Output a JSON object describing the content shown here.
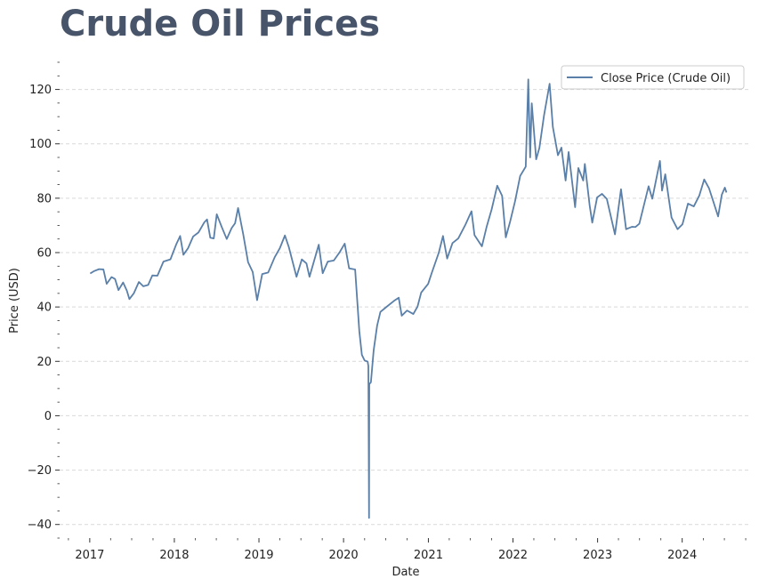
{
  "chart_data": {
    "type": "line",
    "title": "Crude Oil Prices",
    "xlabel": "Date",
    "ylabel": "Price (USD)",
    "xlim": [
      "2016-08-24",
      "2024-10-20"
    ],
    "ylim": [
      -45,
      130
    ],
    "x_ticks": [
      {
        "date": "2017-01-01",
        "label": "2017"
      },
      {
        "date": "2018-01-01",
        "label": "2018"
      },
      {
        "date": "2019-01-01",
        "label": "2019"
      },
      {
        "date": "2020-01-01",
        "label": "2020"
      },
      {
        "date": "2021-01-01",
        "label": "2021"
      },
      {
        "date": "2022-01-01",
        "label": "2022"
      },
      {
        "date": "2023-01-01",
        "label": "2023"
      },
      {
        "date": "2024-01-01",
        "label": "2024"
      }
    ],
    "y_ticks": [
      -40,
      -20,
      0,
      20,
      40,
      60,
      80,
      100,
      120
    ],
    "y_minor_step": 5,
    "grid": {
      "y": true,
      "x": false,
      "style": "dashed"
    },
    "legend": {
      "position": "top-right"
    },
    "color": "#5a7fa8",
    "series": [
      {
        "name": "Close Price (Crude Oil)",
        "points": [
          [
            "2017-01-03",
            52.3
          ],
          [
            "2017-01-20",
            53.2
          ],
          [
            "2017-02-10",
            53.9
          ],
          [
            "2017-03-01",
            53.8
          ],
          [
            "2017-03-15",
            48.5
          ],
          [
            "2017-04-05",
            51.0
          ],
          [
            "2017-04-20",
            50.3
          ],
          [
            "2017-05-05",
            46.2
          ],
          [
            "2017-05-25",
            49.0
          ],
          [
            "2017-06-10",
            46.0
          ],
          [
            "2017-06-21",
            42.9
          ],
          [
            "2017-07-10",
            45.0
          ],
          [
            "2017-08-01",
            49.2
          ],
          [
            "2017-08-20",
            47.6
          ],
          [
            "2017-09-10",
            48.1
          ],
          [
            "2017-09-28",
            51.6
          ],
          [
            "2017-10-20",
            51.5
          ],
          [
            "2017-11-15",
            56.7
          ],
          [
            "2017-12-15",
            57.5
          ],
          [
            "2018-01-10",
            63.2
          ],
          [
            "2018-01-26",
            66.1
          ],
          [
            "2018-02-09",
            59.2
          ],
          [
            "2018-03-01",
            61.6
          ],
          [
            "2018-03-23",
            65.9
          ],
          [
            "2018-04-15",
            67.4
          ],
          [
            "2018-05-10",
            71.1
          ],
          [
            "2018-05-22",
            72.2
          ],
          [
            "2018-06-05",
            65.5
          ],
          [
            "2018-06-20",
            65.2
          ],
          [
            "2018-07-03",
            74.1
          ],
          [
            "2018-07-25",
            69.3
          ],
          [
            "2018-08-15",
            65.0
          ],
          [
            "2018-09-05",
            69.0
          ],
          [
            "2018-09-20",
            70.8
          ],
          [
            "2018-10-03",
            76.4
          ],
          [
            "2018-10-25",
            66.8
          ],
          [
            "2018-11-15",
            56.5
          ],
          [
            "2018-12-05",
            52.9
          ],
          [
            "2018-12-24",
            42.5
          ],
          [
            "2019-01-15",
            52.1
          ],
          [
            "2019-02-10",
            52.7
          ],
          [
            "2019-03-10",
            58.3
          ],
          [
            "2019-04-01",
            61.6
          ],
          [
            "2019-04-23",
            66.3
          ],
          [
            "2019-05-10",
            62.0
          ],
          [
            "2019-06-12",
            51.1
          ],
          [
            "2019-07-05",
            57.5
          ],
          [
            "2019-07-25",
            56.0
          ],
          [
            "2019-08-07",
            51.1
          ],
          [
            "2019-09-16",
            62.9
          ],
          [
            "2019-10-03",
            52.4
          ],
          [
            "2019-10-25",
            56.7
          ],
          [
            "2019-11-20",
            57.1
          ],
          [
            "2019-12-15",
            60.1
          ],
          [
            "2020-01-06",
            63.3
          ],
          [
            "2020-01-25",
            54.2
          ],
          [
            "2020-02-20",
            53.8
          ],
          [
            "2020-03-09",
            31.1
          ],
          [
            "2020-03-20",
            22.4
          ],
          [
            "2020-04-01",
            20.3
          ],
          [
            "2020-04-14",
            19.9
          ],
          [
            "2020-04-17",
            18.3
          ],
          [
            "2020-04-20",
            -37.6
          ],
          [
            "2020-04-21",
            11.6
          ],
          [
            "2020-04-28",
            12.3
          ],
          [
            "2020-05-10",
            24.1
          ],
          [
            "2020-05-25",
            33.2
          ],
          [
            "2020-06-08",
            38.2
          ],
          [
            "2020-07-01",
            39.8
          ],
          [
            "2020-08-05",
            42.2
          ],
          [
            "2020-08-26",
            43.4
          ],
          [
            "2020-09-08",
            36.8
          ],
          [
            "2020-10-01",
            38.7
          ],
          [
            "2020-10-28",
            37.4
          ],
          [
            "2020-11-15",
            40.1
          ],
          [
            "2020-12-01",
            45.3
          ],
          [
            "2020-12-31",
            48.5
          ],
          [
            "2021-01-15",
            52.4
          ],
          [
            "2021-02-15",
            60.0
          ],
          [
            "2021-03-05",
            66.1
          ],
          [
            "2021-03-23",
            57.8
          ],
          [
            "2021-04-15",
            63.5
          ],
          [
            "2021-05-10",
            65.2
          ],
          [
            "2021-06-10",
            70.3
          ],
          [
            "2021-07-06",
            75.2
          ],
          [
            "2021-07-19",
            66.4
          ],
          [
            "2021-08-20",
            62.3
          ],
          [
            "2021-09-10",
            69.7
          ],
          [
            "2021-10-01",
            75.9
          ],
          [
            "2021-10-25",
            84.6
          ],
          [
            "2021-11-15",
            80.9
          ],
          [
            "2021-12-01",
            65.6
          ],
          [
            "2021-12-20",
            71.5
          ],
          [
            "2022-01-10",
            78.9
          ],
          [
            "2022-02-01",
            88.2
          ],
          [
            "2022-02-25",
            91.6
          ],
          [
            "2022-03-08",
            123.7
          ],
          [
            "2022-03-16",
            95.0
          ],
          [
            "2022-03-23",
            114.9
          ],
          [
            "2022-04-11",
            94.3
          ],
          [
            "2022-04-25",
            98.5
          ],
          [
            "2022-05-15",
            110.5
          ],
          [
            "2022-06-08",
            122.1
          ],
          [
            "2022-06-22",
            106.2
          ],
          [
            "2022-07-14",
            95.8
          ],
          [
            "2022-07-29",
            98.6
          ],
          [
            "2022-08-16",
            86.5
          ],
          [
            "2022-08-29",
            97.0
          ],
          [
            "2022-09-26",
            76.7
          ],
          [
            "2022-10-10",
            91.1
          ],
          [
            "2022-10-31",
            86.5
          ],
          [
            "2022-11-07",
            92.6
          ],
          [
            "2022-11-28",
            77.2
          ],
          [
            "2022-12-09",
            71.0
          ],
          [
            "2022-12-30",
            80.3
          ],
          [
            "2023-01-20",
            81.6
          ],
          [
            "2023-02-10",
            79.7
          ],
          [
            "2023-03-17",
            66.7
          ],
          [
            "2023-04-12",
            83.3
          ],
          [
            "2023-05-04",
            68.6
          ],
          [
            "2023-05-30",
            69.5
          ],
          [
            "2023-06-13",
            69.4
          ],
          [
            "2023-06-30",
            70.6
          ],
          [
            "2023-07-14",
            75.4
          ],
          [
            "2023-08-09",
            84.4
          ],
          [
            "2023-08-25",
            79.8
          ],
          [
            "2023-09-27",
            93.7
          ],
          [
            "2023-10-06",
            82.8
          ],
          [
            "2023-10-20",
            88.8
          ],
          [
            "2023-11-16",
            72.9
          ],
          [
            "2023-12-12",
            68.6
          ],
          [
            "2024-01-02",
            70.4
          ],
          [
            "2024-01-26",
            78.0
          ],
          [
            "2024-02-20",
            77.0
          ],
          [
            "2024-03-15",
            81.0
          ],
          [
            "2024-04-05",
            86.9
          ],
          [
            "2024-04-26",
            83.6
          ],
          [
            "2024-05-15",
            78.6
          ],
          [
            "2024-06-04",
            73.3
          ],
          [
            "2024-06-20",
            81.3
          ],
          [
            "2024-07-03",
            83.9
          ],
          [
            "2024-07-10",
            82.1
          ]
        ]
      }
    ]
  }
}
